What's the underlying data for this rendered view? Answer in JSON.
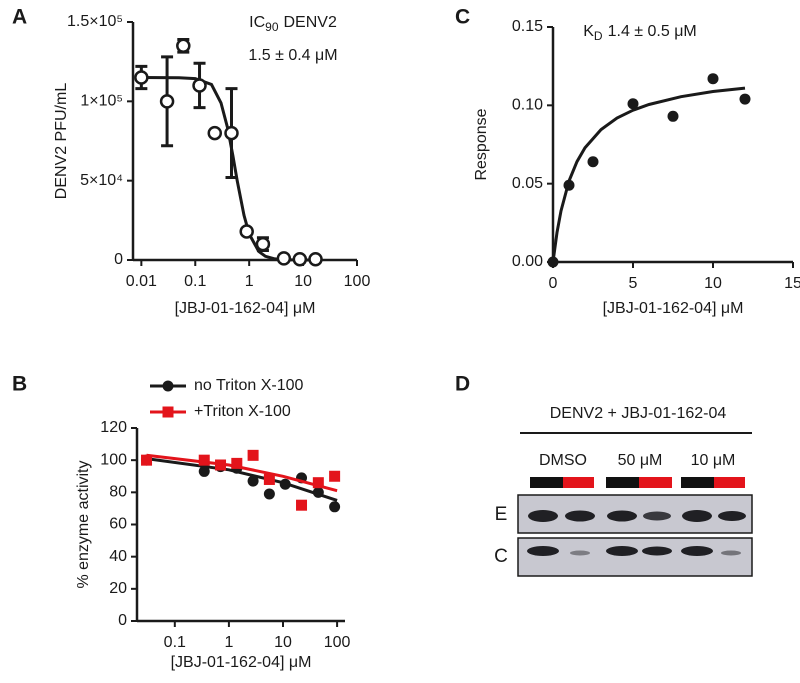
{
  "chart_data": [
    {
      "type": "scatter",
      "panel": "A",
      "annotation": {
        "symbol": "IC",
        "subscript": "90",
        "text": "DENV2",
        "value": "1.5 ± 0.4 μM"
      },
      "xlabel": "[JBJ-01-162-04] μM",
      "ylabel": "DENV2 PFU/mL",
      "xscale": "log",
      "xlim": [
        0.007,
        100
      ],
      "xticks": [
        0.01,
        0.1,
        1,
        10,
        100
      ],
      "ylim": [
        0,
        150000
      ],
      "yticks": [
        0,
        {
          "value": 50000,
          "label": "5×10⁴"
        },
        {
          "value": 100000,
          "label": "1×10⁵"
        },
        {
          "value": 150000,
          "label": "1.5×10⁵"
        }
      ],
      "series": [
        {
          "color": "#1a1a1a",
          "marker": "open-circle",
          "x": [
            0.01,
            0.03,
            0.06,
            0.12,
            0.23,
            0.47,
            0.9,
            1.8,
            4.4,
            8.7,
            17
          ],
          "values": [
            115000,
            100000,
            135000,
            110000,
            80000,
            80000,
            18000,
            10000,
            1000,
            500,
            500
          ],
          "errors": [
            7000,
            28000,
            4000,
            14000,
            null,
            28000,
            null,
            4000,
            null,
            null,
            null
          ],
          "fit": {
            "x": [
              0.01,
              0.05,
              0.1,
              0.2,
              0.3,
              0.4,
              0.5,
              0.6,
              0.8,
              1,
              1.5,
              2,
              3,
              5,
              10,
              20
            ],
            "values": [
              115000,
              114900,
              114300,
              110600,
              99000,
              83000,
              65700,
              50000,
              28200,
              16400,
              5400,
              2350,
              700,
              150,
              20,
              0
            ]
          }
        }
      ]
    },
    {
      "type": "scatter",
      "panel": "C",
      "annotation": {
        "symbol": "K",
        "subscript": "D",
        "text": "1.4 ± 0.5 μM"
      },
      "xlabel": "[JBJ-01-162-04] μM",
      "ylabel": "Response",
      "xlim": [
        0,
        15
      ],
      "xticks": [
        0,
        5,
        10,
        15
      ],
      "ylim": [
        0,
        0.15
      ],
      "yticks": [
        {
          "value": 0,
          "label": "0.00"
        },
        {
          "value": 0.05,
          "label": "0.05"
        },
        {
          "value": 0.1,
          "label": "0.10"
        },
        {
          "value": 0.15,
          "label": "0.15"
        }
      ],
      "series": [
        {
          "color": "#1a1a1a",
          "marker": "circle",
          "x": [
            0,
            1,
            2.5,
            5,
            7.5,
            10,
            12
          ],
          "values": [
            0,
            0.049,
            0.064,
            0.101,
            0.093,
            0.117,
            0.104
          ],
          "fit": {
            "x": [
              0,
              0.25,
              0.5,
              1,
              1.5,
              2,
              3,
              4,
              5,
              6,
              8,
              10,
              12
            ],
            "values": [
              0,
              0.0188,
              0.0326,
              0.0517,
              0.0641,
              0.0729,
              0.0845,
              0.0919,
              0.0969,
              0.1005,
              0.1055,
              0.1088,
              0.111
            ]
          }
        }
      ]
    },
    {
      "type": "scatter",
      "panel": "B",
      "xlabel": "[JBJ-01-162-04] μM",
      "ylabel": "% enzyme activity",
      "xscale": "log",
      "xlim": [
        0.02,
        140
      ],
      "xticks": [
        0.1,
        1,
        10,
        100
      ],
      "ylim": [
        0,
        120
      ],
      "yticks": [
        0,
        20,
        40,
        60,
        80,
        100,
        120
      ],
      "legend": "upper left",
      "series": [
        {
          "name": "no Triton X-100",
          "color": "#1a1a1a",
          "marker": "circle",
          "x": [
            0.03,
            0.35,
            0.7,
            1.4,
            2.8,
            5.6,
            11,
            22,
            45,
            90
          ],
          "values": [
            100,
            93,
            96,
            95,
            87,
            79,
            85,
            89,
            80,
            71
          ],
          "fit": {
            "x": [
              0.03,
              1,
              10,
              100
            ],
            "values": [
              101,
              94,
              86,
              75
            ]
          }
        },
        {
          "name": "+Triton X-100",
          "color": "#e3141b",
          "marker": "square",
          "x": [
            0.03,
            0.35,
            0.7,
            1.4,
            2.8,
            5.6,
            22,
            45,
            90
          ],
          "values": [
            100,
            100,
            97,
            98,
            103,
            88,
            72,
            86,
            90
          ],
          "fit": {
            "x": [
              0.03,
              1,
              10,
              100
            ],
            "values": [
              103,
              97,
              90,
              81
            ]
          }
        }
      ]
    }
  ],
  "blot": {
    "panel": "D",
    "title": "DENV2 + JBJ-01-162-04",
    "conditions": [
      "DMSO",
      "50 μM",
      "10 μM"
    ],
    "rows": [
      "E",
      "C"
    ]
  }
}
